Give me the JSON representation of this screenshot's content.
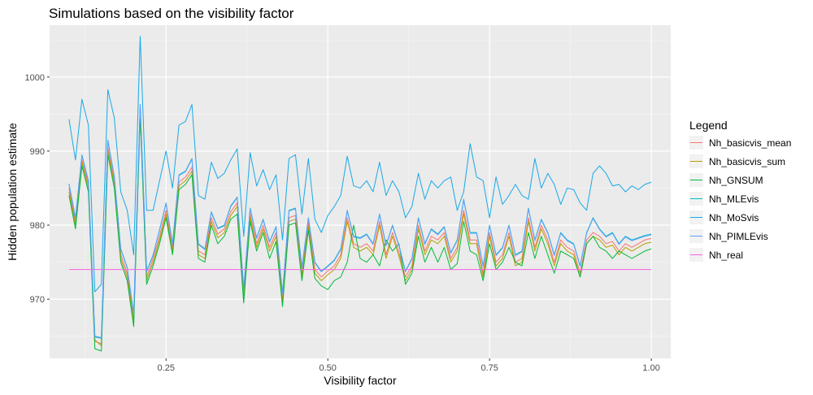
{
  "chart_data": {
    "type": "line",
    "title": "Simulations based on the visibility factor",
    "xlabel": "Visibility factor",
    "ylabel": "Hidden population estimate",
    "xlim": [
      0.07,
      1.03
    ],
    "ylim": [
      962,
      1007
    ],
    "x_ticks": [
      0.25,
      0.5,
      0.75,
      1.0
    ],
    "x_tick_labels": [
      "0.25",
      "0.50",
      "0.75",
      "1.00"
    ],
    "y_ticks": [
      970,
      980,
      990,
      1000
    ],
    "y_tick_labels": [
      "970",
      "980",
      "990",
      "1000"
    ],
    "grid": true,
    "legend_position": "right",
    "legend_title": "Legend",
    "x": [
      0.1,
      0.11,
      0.12,
      0.13,
      0.14,
      0.15,
      0.16,
      0.17,
      0.18,
      0.19,
      0.2,
      0.21,
      0.22,
      0.23,
      0.24,
      0.25,
      0.26,
      0.27,
      0.28,
      0.29,
      0.3,
      0.31,
      0.32,
      0.33,
      0.34,
      0.35,
      0.36,
      0.37,
      0.38,
      0.39,
      0.4,
      0.41,
      0.42,
      0.43,
      0.44,
      0.45,
      0.46,
      0.47,
      0.48,
      0.49,
      0.5,
      0.51,
      0.52,
      0.53,
      0.54,
      0.55,
      0.56,
      0.57,
      0.58,
      0.59,
      0.6,
      0.61,
      0.62,
      0.63,
      0.64,
      0.65,
      0.66,
      0.67,
      0.68,
      0.69,
      0.7,
      0.71,
      0.72,
      0.73,
      0.74,
      0.75,
      0.76,
      0.77,
      0.78,
      0.79,
      0.8,
      0.81,
      0.82,
      0.83,
      0.84,
      0.85,
      0.86,
      0.87,
      0.88,
      0.89,
      0.9,
      0.91,
      0.92,
      0.93,
      0.94,
      0.95,
      0.96,
      0.97,
      0.98,
      0.99,
      1.0
    ],
    "series": [
      {
        "name": "Nh_basicvis_mean",
        "color": "#F8766D",
        "values": [
          985.0,
          980.5,
          988.8,
          985.5,
          964.3,
          964.0,
          990.5,
          986.0,
          976.0,
          973.5,
          967.5,
          995.5,
          973.0,
          975.5,
          978.5,
          982.0,
          976.8,
          985.8,
          986.5,
          987.8,
          976.5,
          976.0,
          981.0,
          978.8,
          979.5,
          981.8,
          983.0,
          970.5,
          981.5,
          977.5,
          980.0,
          977.0,
          979.0,
          970.0,
          981.0,
          981.3,
          973.5,
          980.3,
          974.0,
          973.0,
          973.8,
          974.5,
          976.0,
          981.0,
          977.5,
          977.0,
          977.5,
          976.5,
          980.5,
          976.0,
          979.0,
          976.3,
          973.0,
          974.5,
          980.0,
          976.5,
          978.5,
          978.0,
          979.0,
          975.5,
          977.0,
          982.0,
          978.0,
          978.0,
          973.5,
          979.0,
          975.0,
          976.0,
          979.0,
          975.0,
          975.5,
          981.0,
          977.0,
          980.0,
          978.0,
          975.0,
          978.0,
          977.0,
          976.5,
          973.5,
          978.0,
          979.0,
          978.5,
          977.5,
          977.8,
          976.5,
          977.5,
          977.0,
          977.5,
          978.0,
          978.2
        ]
      },
      {
        "name": "Nh_basicvis_sum",
        "color": "#B79F00",
        "values": [
          984.5,
          980.0,
          988.5,
          985.0,
          964.5,
          963.7,
          990.0,
          985.5,
          975.5,
          973.0,
          967.0,
          995.0,
          972.5,
          975.0,
          978.0,
          981.5,
          976.3,
          985.3,
          986.0,
          987.3,
          976.0,
          975.5,
          980.5,
          978.3,
          979.0,
          981.3,
          982.5,
          970.0,
          981.0,
          977.0,
          979.5,
          976.5,
          978.5,
          969.5,
          980.5,
          980.8,
          973.0,
          979.8,
          973.5,
          972.5,
          973.3,
          974.0,
          975.5,
          980.5,
          977.0,
          976.5,
          977.0,
          976.0,
          980.0,
          975.5,
          978.5,
          975.8,
          972.5,
          974.0,
          979.5,
          976.0,
          978.0,
          977.5,
          978.5,
          975.0,
          976.5,
          981.5,
          977.5,
          977.5,
          973.0,
          978.5,
          974.5,
          975.5,
          978.5,
          974.5,
          975.0,
          980.5,
          976.5,
          979.5,
          977.5,
          974.5,
          977.5,
          976.5,
          976.0,
          973.0,
          977.5,
          978.5,
          978.0,
          977.0,
          977.3,
          976.0,
          977.0,
          976.5,
          977.0,
          977.5,
          977.7
        ]
      },
      {
        "name": "Nh_GNSUM",
        "color": "#00BA38",
        "values": [
          984.0,
          979.5,
          988.0,
          984.5,
          963.3,
          963.0,
          989.5,
          985.0,
          975.0,
          972.5,
          966.3,
          994.8,
          972.0,
          974.5,
          977.5,
          981.0,
          976.0,
          984.8,
          985.5,
          986.8,
          975.5,
          975.0,
          980.0,
          977.5,
          978.5,
          980.8,
          981.5,
          969.5,
          980.5,
          976.5,
          979.0,
          975.5,
          977.8,
          969.0,
          980.0,
          980.3,
          972.5,
          979.3,
          972.8,
          971.8,
          971.3,
          972.5,
          973.0,
          975.0,
          980.0,
          975.5,
          975.0,
          976.0,
          974.5,
          978.0,
          976.5,
          977.5,
          972.0,
          973.5,
          978.5,
          975.0,
          977.0,
          975.0,
          977.0,
          974.0,
          974.8,
          980.5,
          976.5,
          976.0,
          972.5,
          977.5,
          974.0,
          975.0,
          977.0,
          975.0,
          974.5,
          979.0,
          975.5,
          978.5,
          976.0,
          973.5,
          976.5,
          976.0,
          975.5,
          973.0,
          977.5,
          978.5,
          977.0,
          976.5,
          975.5,
          976.5,
          976.0,
          975.5,
          976.0,
          976.5,
          976.8
        ]
      },
      {
        "name": "Nh_MLEvis",
        "color": "#00BFC4",
        "values": [
          985.6,
          981.0,
          989.5,
          986.0,
          965.0,
          964.8,
          991.5,
          986.6,
          976.8,
          974.3,
          968.0,
          996.3,
          973.8,
          976.0,
          979.4,
          983.0,
          977.5,
          986.8,
          987.3,
          989.0,
          977.5,
          976.8,
          981.8,
          979.6,
          980.0,
          982.6,
          983.8,
          971.5,
          982.3,
          978.3,
          980.8,
          977.8,
          979.8,
          970.8,
          982.0,
          982.3,
          974.3,
          981.0,
          975.0,
          973.8,
          974.5,
          975.3,
          976.8,
          982.0,
          978.5,
          978.3,
          978.8,
          977.5,
          981.5,
          977.3,
          980.0,
          977.3,
          973.8,
          975.5,
          981.0,
          977.5,
          979.5,
          978.8,
          979.8,
          976.3,
          978.0,
          983.5,
          979.0,
          979.0,
          974.5,
          980.0,
          976.0,
          977.0,
          980.0,
          976.0,
          976.5,
          982.3,
          978.0,
          980.8,
          979.0,
          976.0,
          979.0,
          978.0,
          977.5,
          974.5,
          979.0,
          981.0,
          979.5,
          978.5,
          979.0,
          977.5,
          978.5,
          978.0,
          978.3,
          978.6,
          978.8
        ]
      },
      {
        "name": "Nh_MoSvis",
        "color": "#17A9E8",
        "values": [
          994.3,
          988.8,
          997.0,
          993.5,
          971.0,
          972.0,
          998.3,
          994.5,
          984.5,
          982.0,
          976.0,
          1005.5,
          982.0,
          982.0,
          986.0,
          990.0,
          985.0,
          993.5,
          994.0,
          996.3,
          984.0,
          983.5,
          988.5,
          986.3,
          987.0,
          988.8,
          990.3,
          978.5,
          989.8,
          985.3,
          987.5,
          984.8,
          986.8,
          978.0,
          989.0,
          989.5,
          981.5,
          989.0,
          980.8,
          979.0,
          981.3,
          982.5,
          984.0,
          989.3,
          985.3,
          985.0,
          986.0,
          984.5,
          988.5,
          984.0,
          986.0,
          984.5,
          981.0,
          982.5,
          987.0,
          983.5,
          986.0,
          985.0,
          986.0,
          986.5,
          982.0,
          984.5,
          991.0,
          986.5,
          986.0,
          981.0,
          986.5,
          982.8,
          984.0,
          985.5,
          984.0,
          983.5,
          989.0,
          985.0,
          987.0,
          985.5,
          982.8,
          985.0,
          984.8,
          983.0,
          982.0,
          987.0,
          988.0,
          987.0,
          985.3,
          985.5,
          984.5,
          985.3,
          984.8,
          985.5,
          985.8
        ]
      },
      {
        "name": "Nh_PIMLEvis",
        "color": "#619CFF",
        "values": [
          985.5,
          980.9,
          989.4,
          985.9,
          964.9,
          964.7,
          991.4,
          986.5,
          976.7,
          974.2,
          967.9,
          996.2,
          973.7,
          975.9,
          979.3,
          982.9,
          977.4,
          986.7,
          987.2,
          988.9,
          977.4,
          976.7,
          981.7,
          979.5,
          979.9,
          982.5,
          983.7,
          971.4,
          982.2,
          978.2,
          980.7,
          977.7,
          979.7,
          970.7,
          981.9,
          982.2,
          974.2,
          980.9,
          974.9,
          973.7,
          974.4,
          975.2,
          976.7,
          981.9,
          978.4,
          978.2,
          978.7,
          977.4,
          981.4,
          977.2,
          979.9,
          977.2,
          973.7,
          975.4,
          980.9,
          977.4,
          979.4,
          978.7,
          979.7,
          976.2,
          977.9,
          983.4,
          978.9,
          978.9,
          974.4,
          979.9,
          975.9,
          976.9,
          979.9,
          975.9,
          976.4,
          982.2,
          977.9,
          980.7,
          978.9,
          975.9,
          978.9,
          977.9,
          977.4,
          974.4,
          978.9,
          980.9,
          979.4,
          978.4,
          978.9,
          977.4,
          978.4,
          977.9,
          978.2,
          978.5,
          978.7
        ]
      },
      {
        "name": "Nh_real",
        "color": "#F564E3",
        "values": [
          974,
          974,
          974,
          974,
          974,
          974,
          974,
          974,
          974,
          974,
          974,
          974,
          974,
          974,
          974,
          974,
          974,
          974,
          974,
          974,
          974,
          974,
          974,
          974,
          974,
          974,
          974,
          974,
          974,
          974,
          974,
          974,
          974,
          974,
          974,
          974,
          974,
          974,
          974,
          974,
          974,
          974,
          974,
          974,
          974,
          974,
          974,
          974,
          974,
          974,
          974,
          974,
          974,
          974,
          974,
          974,
          974,
          974,
          974,
          974,
          974,
          974,
          974,
          974,
          974,
          974,
          974,
          974,
          974,
          974,
          974,
          974,
          974,
          974,
          974,
          974,
          974,
          974,
          974,
          974,
          974,
          974,
          974,
          974,
          974,
          974,
          974,
          974,
          974,
          974,
          974
        ]
      }
    ]
  }
}
